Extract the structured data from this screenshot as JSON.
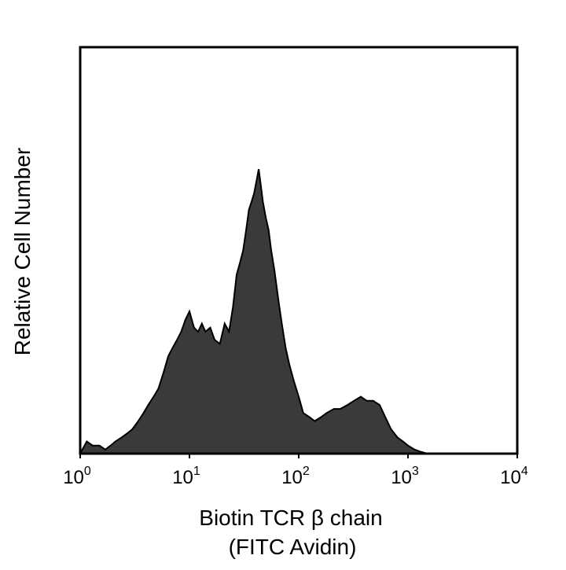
{
  "colors": {
    "background": "#ffffff",
    "histogram_fill": "#3a3a3a",
    "histogram_stroke": "#000000",
    "frame": "#000000",
    "text": "#000000"
  },
  "chart_data": {
    "type": "area",
    "xscale": "log",
    "xlim": [
      1,
      10000
    ],
    "ylim": [
      0,
      100
    ],
    "yticks": "none",
    "grid": false,
    "legend": "none",
    "xlabel": "Biotin TCR β chain",
    "xlabel_line2": "(FITC Avidin)",
    "ylabel": "Relative Cell Number",
    "x_ticks": [
      {
        "value": 1,
        "base": "10",
        "exp": "0"
      },
      {
        "value": 10,
        "base": "10",
        "exp": "1"
      },
      {
        "value": 100,
        "base": "10",
        "exp": "2"
      },
      {
        "value": 1000,
        "base": "10",
        "exp": "3"
      },
      {
        "value": 10000,
        "base": "10",
        "exp": "4"
      }
    ],
    "series": [
      {
        "x": [
          1.0,
          1.15,
          1.3,
          1.5,
          1.7,
          1.9,
          2.1,
          2.4,
          2.7,
          3.0,
          3.4,
          3.8,
          4.2,
          4.7,
          5.2,
          5.8,
          6.4,
          7.0,
          7.7,
          8.4,
          9.2,
          10.0,
          11.0,
          12.0,
          13.0,
          14.0,
          15.5,
          17.0,
          19.0,
          21.0,
          23.0,
          25.0,
          27.0,
          29.0,
          31.0,
          33.0,
          35.0,
          37.0,
          39.0,
          41.0,
          43.0,
          45.0,
          47.0,
          50.0,
          53.0,
          56.0,
          60.0,
          65.0,
          70.0,
          76.0,
          82.0,
          90.0,
          100.0,
          110.0,
          125.0,
          140.0,
          160.0,
          180.0,
          210.0,
          240.0,
          280.0,
          320.0,
          370.0,
          420.0,
          480.0,
          550.0,
          620.0,
          700.0,
          800.0,
          900.0,
          1000.0,
          1150.0,
          1300.0,
          1500.0
        ],
        "y": [
          0,
          3,
          2,
          2,
          1,
          2,
          3,
          4,
          5,
          6,
          8,
          10,
          12,
          14,
          16,
          20,
          24,
          26,
          28,
          30,
          33,
          35,
          31,
          30,
          32,
          30,
          31,
          28,
          27,
          32,
          30,
          36,
          44,
          47,
          50,
          55,
          60,
          62,
          64,
          67,
          70,
          66,
          62,
          58,
          55,
          50,
          45,
          38,
          32,
          26,
          22,
          18,
          14,
          10,
          9,
          8,
          9,
          10,
          11,
          11,
          12,
          13,
          14,
          13,
          13,
          12,
          9,
          6,
          4,
          3,
          2,
          1,
          0.5,
          0
        ]
      }
    ]
  }
}
